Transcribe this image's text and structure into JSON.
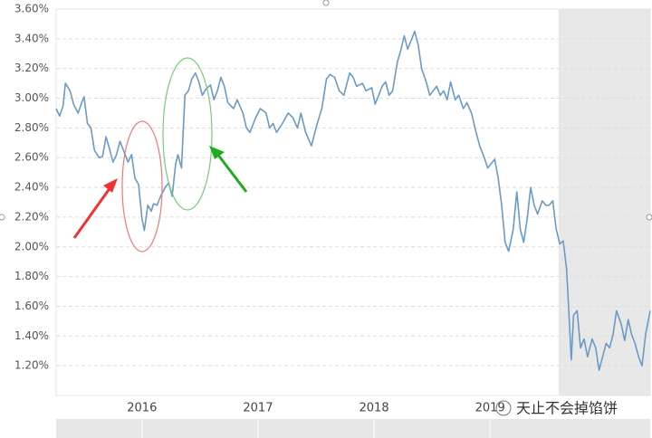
{
  "chart_data": {
    "type": "line",
    "xlim": [
      2015.26,
      2020.38
    ],
    "ylim": [
      1.0,
      3.6
    ],
    "xticks": [
      2016,
      2017,
      2018,
      2019
    ],
    "yticks": [
      {
        "value": 1.2,
        "label": "1.20%"
      },
      {
        "value": 1.4,
        "label": "1.40%"
      },
      {
        "value": 1.6,
        "label": "1.60%"
      },
      {
        "value": 1.8,
        "label": "1.80%"
      },
      {
        "value": 2.0,
        "label": "2.00%"
      },
      {
        "value": 2.2,
        "label": "2.20%"
      },
      {
        "value": 2.4,
        "label": "2.40%"
      },
      {
        "value": 2.6,
        "label": "2.60%"
      },
      {
        "value": 2.8,
        "label": "2.80%"
      },
      {
        "value": 3.0,
        "label": "3.00%"
      },
      {
        "value": 3.2,
        "label": "3.20%"
      },
      {
        "value": 3.4,
        "label": "3.40%"
      },
      {
        "value": 3.6,
        "label": "3.60%"
      }
    ],
    "grid": true,
    "shade_xlim": [
      2019.59,
      2020.38
    ],
    "watermark": "天止不会掉馅饼",
    "series": [
      {
        "color": "#6b9ac4",
        "x": [
          2015.26,
          2015.29,
          2015.32,
          2015.34,
          2015.38,
          2015.41,
          2015.45,
          2015.48,
          2015.5,
          2015.53,
          2015.56,
          2015.59,
          2015.63,
          2015.66,
          2015.69,
          2015.72,
          2015.75,
          2015.78,
          2015.81,
          2015.84,
          2015.88,
          2015.91,
          2015.94,
          2015.97,
          2016.0,
          2016.02,
          2016.05,
          2016.08,
          2016.1,
          2016.13,
          2016.16,
          2016.2,
          2016.23,
          2016.26,
          2016.29,
          2016.31,
          2016.34,
          2016.37,
          2016.4,
          2016.43,
          2016.46,
          2016.49,
          2016.52,
          2016.55,
          2016.59,
          2016.62,
          2016.65,
          2016.68,
          2016.71,
          2016.74,
          2016.79,
          2016.82,
          2016.87,
          2016.9,
          2016.93,
          2016.98,
          2017.02,
          2017.07,
          2017.1,
          2017.13,
          2017.16,
          2017.21,
          2017.26,
          2017.3,
          2017.34,
          2017.37,
          2017.41,
          2017.46,
          2017.51,
          2017.55,
          2017.59,
          2017.62,
          2017.66,
          2017.7,
          2017.74,
          2017.79,
          2017.82,
          2017.85,
          2017.9,
          2017.93,
          2017.98,
          2018.01,
          2018.04,
          2018.07,
          2018.1,
          2018.13,
          2018.16,
          2018.2,
          2018.23,
          2018.26,
          2018.29,
          2018.32,
          2018.35,
          2018.38,
          2018.41,
          2018.45,
          2018.48,
          2018.51,
          2018.54,
          2018.57,
          2018.6,
          2018.63,
          2018.66,
          2018.7,
          2018.73,
          2018.77,
          2018.8,
          2018.84,
          2018.87,
          2018.91,
          2018.95,
          2018.98,
          2019.01,
          2019.04,
          2019.07,
          2019.1,
          2019.13,
          2019.16,
          2019.2,
          2019.23,
          2019.26,
          2019.29,
          2019.32,
          2019.35,
          2019.38,
          2019.41,
          2019.45,
          2019.48,
          2019.51,
          2019.54,
          2019.57,
          2019.6,
          2019.63,
          2019.66,
          2019.7,
          2019.72,
          2019.75,
          2019.78,
          2019.81,
          2019.84,
          2019.88,
          2019.91,
          2019.94,
          2019.97,
          2020.0,
          2020.03,
          2020.06,
          2020.09,
          2020.13,
          2020.16,
          2020.19,
          2020.22,
          2020.25,
          2020.28,
          2020.31,
          2020.34,
          2020.38
        ],
        "values": [
          2.93,
          2.88,
          2.95,
          3.1,
          3.05,
          2.96,
          2.9,
          2.97,
          3.01,
          2.83,
          2.8,
          2.65,
          2.6,
          2.61,
          2.74,
          2.66,
          2.57,
          2.62,
          2.71,
          2.65,
          2.57,
          2.62,
          2.46,
          2.42,
          2.19,
          2.11,
          2.28,
          2.24,
          2.29,
          2.28,
          2.34,
          2.4,
          2.43,
          2.34,
          2.56,
          2.62,
          2.53,
          3.02,
          3.05,
          3.13,
          3.17,
          3.11,
          3.02,
          3.06,
          3.09,
          2.99,
          3.05,
          3.14,
          3.08,
          2.97,
          2.93,
          2.99,
          2.9,
          2.8,
          2.77,
          2.87,
          2.93,
          2.9,
          2.8,
          2.83,
          2.77,
          2.83,
          2.9,
          2.87,
          2.8,
          2.9,
          2.77,
          2.68,
          2.83,
          2.93,
          3.13,
          3.16,
          3.14,
          3.05,
          3.02,
          3.17,
          3.14,
          3.08,
          3.1,
          3.05,
          3.07,
          2.96,
          3.02,
          3.08,
          3.11,
          3.02,
          3.05,
          3.24,
          3.32,
          3.42,
          3.33,
          3.39,
          3.45,
          3.36,
          3.2,
          3.11,
          3.02,
          3.05,
          3.08,
          3.02,
          3.05,
          2.99,
          3.11,
          2.99,
          3.02,
          2.93,
          2.97,
          2.9,
          2.8,
          2.68,
          2.6,
          2.53,
          2.56,
          2.59,
          2.46,
          2.28,
          2.03,
          1.97,
          2.12,
          2.37,
          2.12,
          2.03,
          2.19,
          2.4,
          2.28,
          2.22,
          2.31,
          2.28,
          2.28,
          2.31,
          2.12,
          2.02,
          2.04,
          1.85,
          1.24,
          1.54,
          1.57,
          1.32,
          1.38,
          1.26,
          1.38,
          1.32,
          1.17,
          1.26,
          1.35,
          1.32,
          1.41,
          1.57,
          1.48,
          1.37,
          1.51,
          1.41,
          1.35,
          1.26,
          1.2,
          1.41,
          1.57
        ]
      }
    ]
  }
}
